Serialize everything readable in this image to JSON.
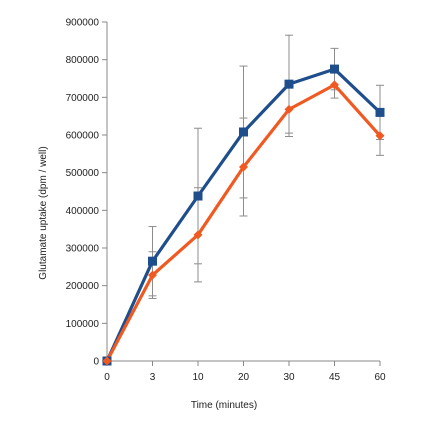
{
  "chart_data": {
    "type": "line",
    "title": "",
    "xlabel": "Time (minutes)",
    "ylabel": "Glutamate uptake (dpm / well)",
    "categories": [
      "0",
      "3",
      "10",
      "20",
      "30",
      "45",
      "60"
    ],
    "y_ticks": [
      "0",
      "100000",
      "200000",
      "300000",
      "400000",
      "500000",
      "600000",
      "700000",
      "800000",
      "900000"
    ],
    "ylim": [
      0,
      900000
    ],
    "grid": false,
    "legend": "none",
    "series": [
      {
        "color": "#1f4e8c",
        "marker": "square",
        "values": [
          0,
          265000,
          438000,
          608000,
          735000,
          775000,
          660000
        ],
        "error": [
          0,
          92000,
          180000,
          175000,
          130000,
          55000,
          72000
        ]
      },
      {
        "color": "#f05a22",
        "marker": "diamond",
        "values": [
          0,
          228000,
          335000,
          515000,
          668000,
          733000,
          598000
        ],
        "error": [
          0,
          62000,
          125000,
          130000,
          72000,
          35000,
          52000
        ]
      }
    ]
  }
}
